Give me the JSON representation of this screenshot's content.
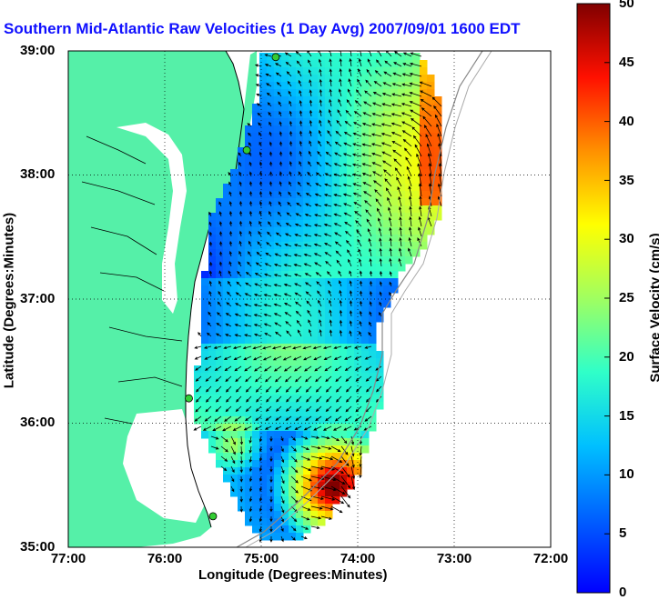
{
  "title": "Southern Mid-Atlantic Raw Velocities (1 Day Avg) 2007/09/01 1600 EDT",
  "axes": {
    "xlabel": "Longitude (Degrees:Minutes)",
    "ylabel": "Latitude (Degrees:Minutes)",
    "x_ticks": [
      "77:00",
      "76:00",
      "75:00",
      "74:00",
      "73:00",
      "72:00"
    ],
    "y_ticks": [
      "39:00",
      "38:00",
      "37:00",
      "36:00",
      "35:00"
    ],
    "lon_range": [
      -77,
      -72
    ],
    "lat_range": [
      35,
      39
    ],
    "grid": "dotted"
  },
  "colorbar": {
    "label": "Surface Velocity (cm/s)",
    "ticks": [
      "50",
      "45",
      "40",
      "35",
      "30",
      "25",
      "20",
      "15",
      "10",
      "5",
      "0"
    ],
    "range": [
      0,
      50
    ],
    "colormap": "jet"
  },
  "colors": {
    "land": "#55f0a8",
    "title": "#1010ff",
    "station": "#33cc33"
  },
  "stations": [
    {
      "lon": -74.85,
      "lat": 38.95
    },
    {
      "lon": -75.15,
      "lat": 38.2
    },
    {
      "lon": -75.75,
      "lat": 36.2
    },
    {
      "lon": -75.5,
      "lat": 35.25
    }
  ]
}
